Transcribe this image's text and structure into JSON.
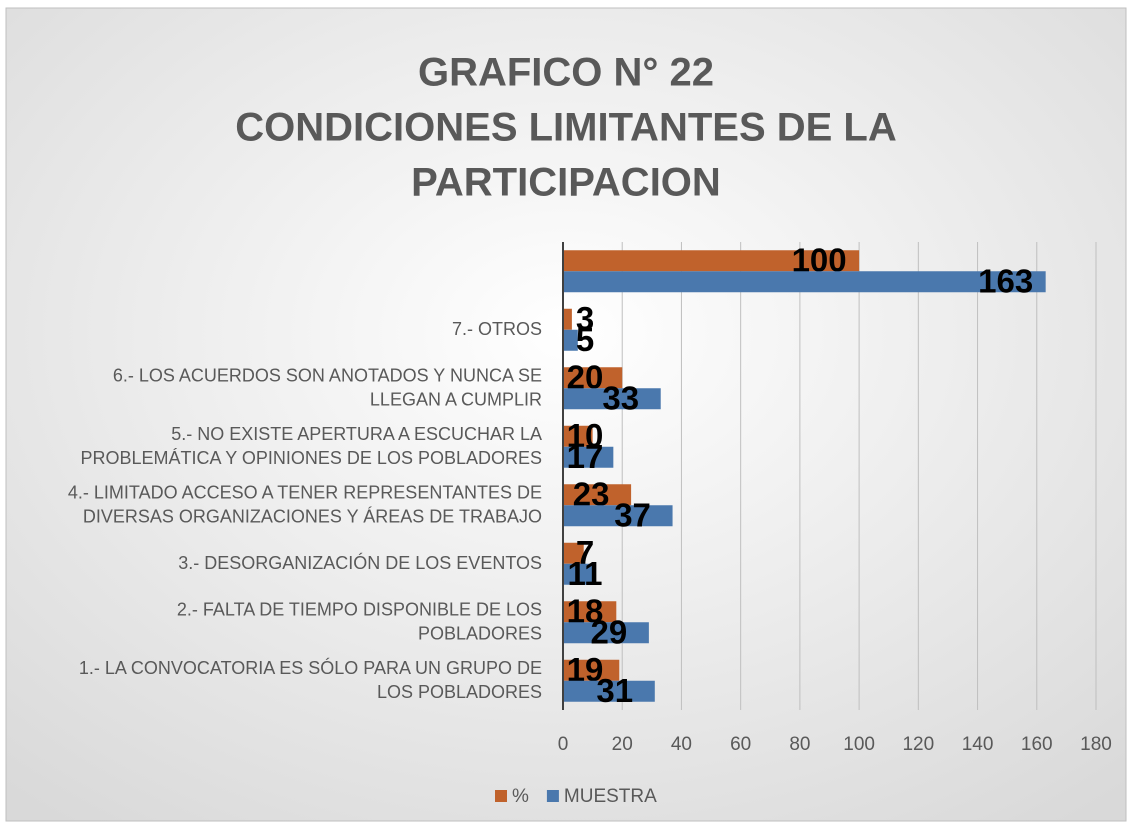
{
  "chart_data": {
    "type": "bar",
    "orientation": "horizontal",
    "title": [
      "GRAFICO N° 22",
      "CONDICIONES LIMITANTES DE LA",
      "PARTICIPACION"
    ],
    "categories": [
      "1.- LA CONVOCATORIA ES SÓLO PARA UN GRUPO DE LOS POBLADORES",
      "2.- FALTA DE TIEMPO DISPONIBLE DE LOS POBLADORES",
      "3.- DESORGANIZACIÓN DE LOS EVENTOS",
      "4.- LIMITADO ACCESO A TENER REPRESENTANTES DE DIVERSAS ORGANIZACIONES Y ÁREAS DE TRABAJO",
      "5.- NO EXISTE APERTURA A ESCUCHAR LA PROBLEMÁTICA Y OPINIONES DE LOS POBLADORES",
      "6.- LOS ACUERDOS SON ANOTADOS Y NUNCA SE LLEGAN A CUMPLIR",
      "7.- OTROS",
      null
    ],
    "series": [
      {
        "name": "%",
        "color": "#c0622c",
        "values": [
          19,
          18,
          7,
          23,
          10,
          20,
          3,
          100
        ]
      },
      {
        "name": "MUESTRA",
        "color": "#4a78ad",
        "values": [
          31,
          29,
          11,
          37,
          17,
          33,
          5,
          163
        ]
      }
    ],
    "xlim": [
      0,
      180
    ],
    "xticks": [
      0,
      20,
      40,
      60,
      80,
      100,
      120,
      140,
      160,
      180
    ],
    "grid": true,
    "legend": "bottom"
  }
}
